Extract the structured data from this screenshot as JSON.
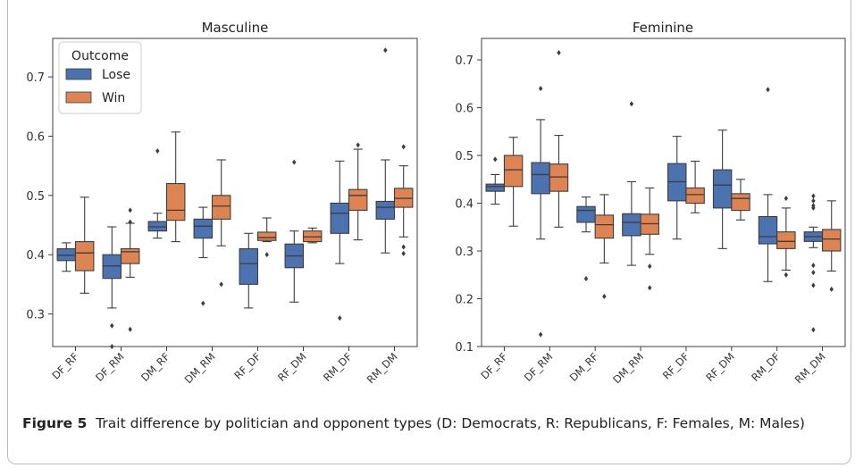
{
  "colors": {
    "lose": "#4c72b0",
    "win": "#dd8452",
    "edge": "#3d3d3d",
    "frame": "#b9bcbf"
  },
  "caption": {
    "label": "Figure 5",
    "text": "Trait difference by politician and opponent types (D: Democrats, R: Republicans, F: Females, M: Males)"
  },
  "chart_data": [
    {
      "type": "box",
      "title": "Masculine",
      "categories": [
        "DF_RF",
        "DF_RM",
        "DM_RF",
        "DM_RM",
        "RF_DF",
        "RF_DM",
        "RM_DF",
        "RM_DM"
      ],
      "ylim": [
        0.245,
        0.765
      ],
      "yticks": [
        0.3,
        0.4,
        0.5,
        0.6,
        0.7
      ],
      "legend": {
        "title": "Outcome",
        "placement": "top-left",
        "entries": [
          "Lose",
          "Win"
        ]
      },
      "series": [
        {
          "name": "Lose",
          "boxes": [
            {
              "whislo": 0.372,
              "q1": 0.39,
              "med": 0.399,
              "q3": 0.41,
              "whishi": 0.42,
              "fliers": []
            },
            {
              "whislo": 0.31,
              "q1": 0.36,
              "med": 0.381,
              "q3": 0.4,
              "whishi": 0.447,
              "fliers": [
                0.28,
                0.245
              ]
            },
            {
              "whislo": 0.428,
              "q1": 0.44,
              "med": 0.447,
              "q3": 0.456,
              "whishi": 0.47,
              "fliers": [
                0.575
              ]
            },
            {
              "whislo": 0.395,
              "q1": 0.428,
              "med": 0.448,
              "q3": 0.46,
              "whishi": 0.48,
              "fliers": [
                0.318
              ]
            },
            {
              "whislo": 0.31,
              "q1": 0.35,
              "med": 0.385,
              "q3": 0.41,
              "whishi": 0.436,
              "fliers": []
            },
            {
              "whislo": 0.32,
              "q1": 0.378,
              "med": 0.398,
              "q3": 0.418,
              "whishi": 0.44,
              "fliers": [
                0.556
              ]
            },
            {
              "whislo": 0.385,
              "q1": 0.436,
              "med": 0.47,
              "q3": 0.487,
              "whishi": 0.558,
              "fliers": [
                0.293
              ]
            },
            {
              "whislo": 0.403,
              "q1": 0.46,
              "med": 0.48,
              "q3": 0.49,
              "whishi": 0.56,
              "fliers": [
                0.745
              ]
            }
          ]
        },
        {
          "name": "Win",
          "boxes": [
            {
              "whislo": 0.335,
              "q1": 0.373,
              "med": 0.403,
              "q3": 0.422,
              "whishi": 0.497,
              "fliers": []
            },
            {
              "whislo": 0.362,
              "q1": 0.385,
              "med": 0.405,
              "q3": 0.41,
              "whishi": 0.453,
              "fliers": [
                0.475,
                0.455,
                0.274
              ]
            },
            {
              "whislo": 0.422,
              "q1": 0.458,
              "med": 0.475,
              "q3": 0.52,
              "whishi": 0.607,
              "fliers": []
            },
            {
              "whislo": 0.415,
              "q1": 0.46,
              "med": 0.482,
              "q3": 0.5,
              "whishi": 0.56,
              "fliers": [
                0.35
              ]
            },
            {
              "whislo": 0.422,
              "q1": 0.424,
              "med": 0.429,
              "q3": 0.438,
              "whishi": 0.462,
              "fliers": [
                0.4
              ]
            },
            {
              "whislo": 0.42,
              "q1": 0.422,
              "med": 0.43,
              "q3": 0.44,
              "whishi": 0.445,
              "fliers": []
            },
            {
              "whislo": 0.425,
              "q1": 0.475,
              "med": 0.5,
              "q3": 0.51,
              "whishi": 0.578,
              "fliers": [
                0.585
              ]
            },
            {
              "whislo": 0.43,
              "q1": 0.48,
              "med": 0.495,
              "q3": 0.512,
              "whishi": 0.55,
              "fliers": [
                0.582,
                0.413,
                0.402
              ]
            }
          ]
        }
      ]
    },
    {
      "type": "box",
      "title": "Feminine",
      "categories": [
        "DF_RF",
        "DF_RM",
        "DM_RF",
        "DM_RM",
        "RF_DF",
        "RF_DM",
        "RM_DF",
        "RM_DM"
      ],
      "ylim": [
        0.1,
        0.745
      ],
      "yticks": [
        0.1,
        0.2,
        0.3,
        0.4,
        0.5,
        0.6,
        0.7
      ],
      "series": [
        {
          "name": "Lose",
          "boxes": [
            {
              "whislo": 0.398,
              "q1": 0.425,
              "med": 0.435,
              "q3": 0.44,
              "whishi": 0.46,
              "fliers": [
                0.492
              ]
            },
            {
              "whislo": 0.325,
              "q1": 0.42,
              "med": 0.46,
              "q3": 0.485,
              "whishi": 0.575,
              "fliers": [
                0.64,
                0.125
              ]
            },
            {
              "whislo": 0.34,
              "q1": 0.36,
              "med": 0.385,
              "q3": 0.393,
              "whishi": 0.413,
              "fliers": [
                0.242
              ]
            },
            {
              "whislo": 0.27,
              "q1": 0.332,
              "med": 0.36,
              "q3": 0.378,
              "whishi": 0.445,
              "fliers": [
                0.608
              ]
            },
            {
              "whislo": 0.325,
              "q1": 0.405,
              "med": 0.445,
              "q3": 0.483,
              "whishi": 0.54,
              "fliers": []
            },
            {
              "whislo": 0.305,
              "q1": 0.39,
              "med": 0.438,
              "q3": 0.47,
              "whishi": 0.553,
              "fliers": []
            },
            {
              "whislo": 0.236,
              "q1": 0.315,
              "med": 0.33,
              "q3": 0.372,
              "whishi": 0.418,
              "fliers": [
                0.638
              ]
            },
            {
              "whislo": 0.307,
              "q1": 0.32,
              "med": 0.33,
              "q3": 0.34,
              "whishi": 0.35,
              "fliers": [
                0.415,
                0.405,
                0.395,
                0.39,
                0.27,
                0.255,
                0.228,
                0.135
              ]
            }
          ]
        },
        {
          "name": "Win",
          "boxes": [
            {
              "whislo": 0.352,
              "q1": 0.435,
              "med": 0.47,
              "q3": 0.5,
              "whishi": 0.538,
              "fliers": []
            },
            {
              "whislo": 0.35,
              "q1": 0.425,
              "med": 0.455,
              "q3": 0.482,
              "whishi": 0.542,
              "fliers": [
                0.715
              ]
            },
            {
              "whislo": 0.275,
              "q1": 0.327,
              "med": 0.355,
              "q3": 0.375,
              "whishi": 0.418,
              "fliers": [
                0.205
              ]
            },
            {
              "whislo": 0.293,
              "q1": 0.335,
              "med": 0.357,
              "q3": 0.377,
              "whishi": 0.432,
              "fliers": [
                0.268,
                0.223
              ]
            },
            {
              "whislo": 0.38,
              "q1": 0.4,
              "med": 0.418,
              "q3": 0.432,
              "whishi": 0.488,
              "fliers": []
            },
            {
              "whislo": 0.365,
              "q1": 0.385,
              "med": 0.41,
              "q3": 0.42,
              "whishi": 0.45,
              "fliers": []
            },
            {
              "whislo": 0.26,
              "q1": 0.305,
              "med": 0.32,
              "q3": 0.34,
              "whishi": 0.39,
              "fliers": [
                0.41,
                0.25
              ]
            },
            {
              "whislo": 0.258,
              "q1": 0.3,
              "med": 0.325,
              "q3": 0.345,
              "whishi": 0.405,
              "fliers": [
                0.22
              ]
            }
          ]
        }
      ]
    }
  ]
}
